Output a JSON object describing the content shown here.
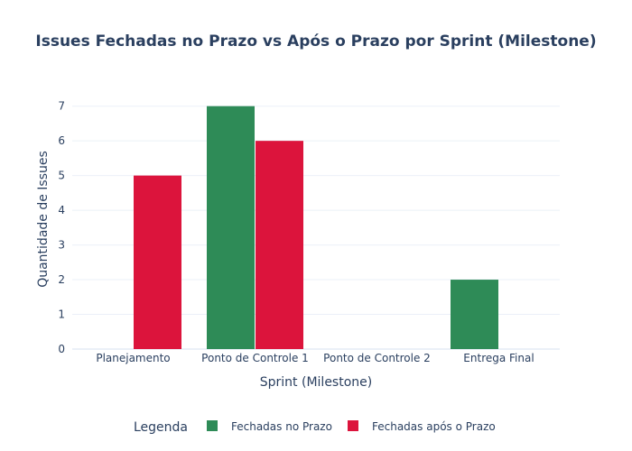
{
  "chart_data": {
    "type": "bar",
    "title": "Issues Fechadas no Prazo vs Após o Prazo por Sprint (Milestone)",
    "xlabel": "Sprint (Milestone)",
    "ylabel": "Quantidade de Issues",
    "categories": [
      "Planejamento",
      "Ponto de Controle 1",
      "Ponto de Controle 2",
      "Entrega Final"
    ],
    "series": [
      {
        "name": "Fechadas no Prazo",
        "values": [
          0,
          7,
          0,
          2
        ],
        "color": "#2e8b57"
      },
      {
        "name": "Fechadas após o Prazo",
        "values": [
          5,
          6,
          0,
          0
        ],
        "color": "#dc143c"
      }
    ],
    "ylim": [
      0,
      7.2
    ],
    "yticks": [
      0,
      1,
      2,
      3,
      4,
      5,
      6,
      7
    ],
    "grid": true,
    "legend": {
      "title": "Legenda",
      "placement": "bottom"
    }
  }
}
